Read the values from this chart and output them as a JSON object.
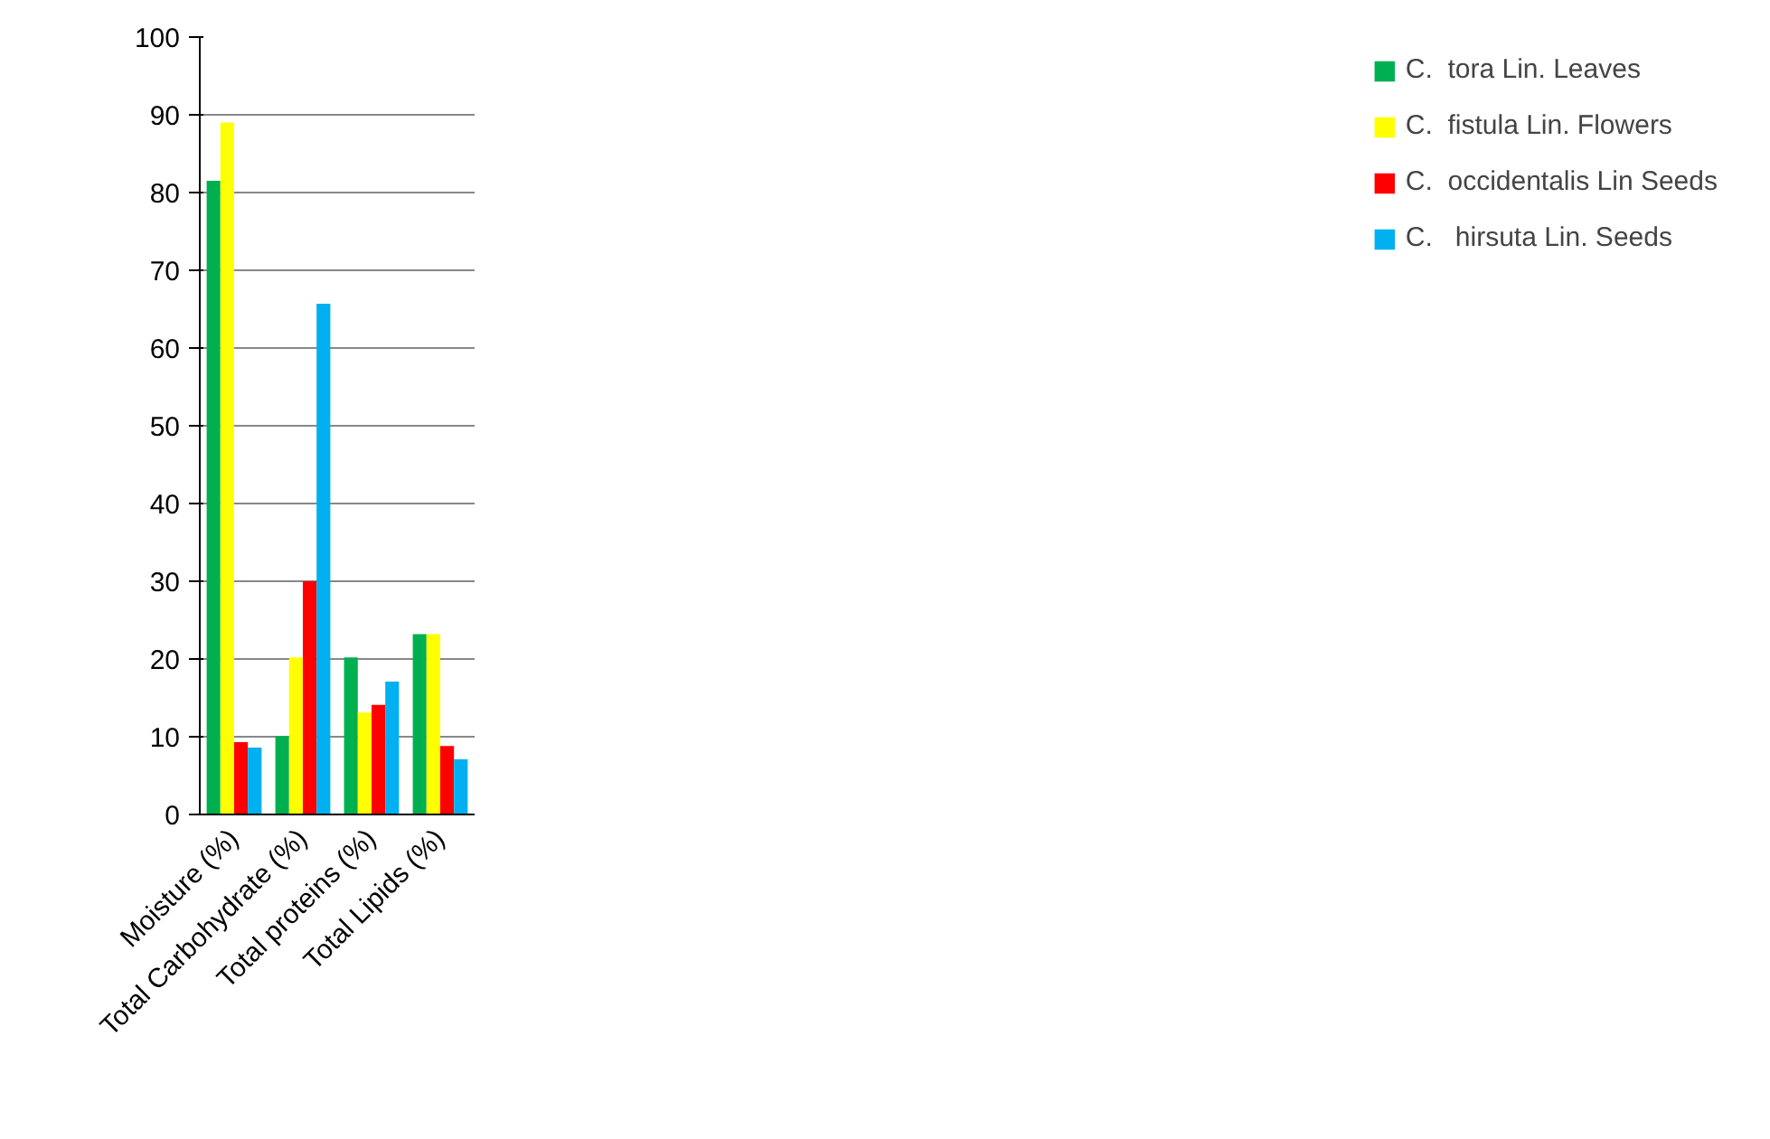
{
  "chart_data": {
    "type": "bar",
    "categories": [
      "Moisture (%)",
      "Total Carbohydrate (%)",
      "Total proteins (%)",
      "Total Lipids (%)"
    ],
    "series": [
      {
        "name": "C.  tora Lin. Leaves",
        "color": "#00b050",
        "values": [
          81.5,
          10.1,
          20.2,
          23.2
        ]
      },
      {
        "name": "C.  fistula Lin. Flowers",
        "color": "#ffff00",
        "values": [
          89,
          20.2,
          13.1,
          23.2
        ]
      },
      {
        "name": "C.  occidentalis Lin Seeds",
        "color": "#ff0000",
        "values": [
          9.3,
          30,
          14.1,
          8.8
        ]
      },
      {
        "name": "C.   hirsuta Lin. Seeds",
        "color": "#00b0f0",
        "values": [
          8.6,
          65.7,
          17.1,
          7.1
        ]
      }
    ],
    "ylim": [
      0,
      100
    ],
    "yticks": [
      0,
      10,
      20,
      30,
      40,
      50,
      60,
      70,
      80,
      90,
      100
    ],
    "grid": "y",
    "legend": "right"
  }
}
